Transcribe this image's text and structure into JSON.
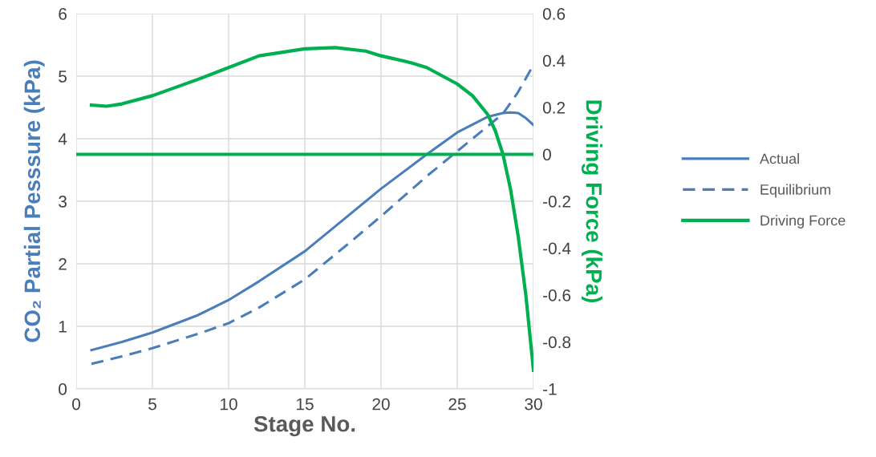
{
  "chart_data": {
    "type": "line",
    "xlabel": "Stage No.",
    "ylabel": "CO₂ Partial Pesssure (kPa)",
    "y2label": "Driving Force (kPa)",
    "xlim": [
      0,
      30
    ],
    "xticks": [
      0,
      5,
      10,
      15,
      20,
      25,
      30
    ],
    "ylim": [
      0,
      6
    ],
    "yticks": [
      0,
      1,
      2,
      3,
      4,
      5,
      6
    ],
    "y2lim": [
      -1,
      0.6
    ],
    "y2ticks": [
      -1,
      -0.8,
      -0.6,
      -0.4,
      -0.2,
      0,
      0.2,
      0.4,
      0.6
    ],
    "grid": true,
    "legend": "right",
    "marker": "none",
    "ref_lines": [
      {
        "axis": "y2",
        "value": 0,
        "color": "#00b050"
      }
    ],
    "series": [
      {
        "name": "Actual",
        "color": "#4a7ebb",
        "line_style": "solid",
        "x": [
          1,
          3,
          5,
          8,
          10,
          12,
          15,
          18,
          20,
          23,
          25,
          27,
          28,
          28.5,
          29,
          29.5,
          30
        ],
        "values": [
          0.62,
          0.75,
          0.9,
          1.18,
          1.42,
          1.72,
          2.2,
          2.8,
          3.2,
          3.75,
          4.1,
          4.35,
          4.41,
          4.42,
          4.41,
          4.33,
          4.22
        ]
      },
      {
        "name": "Equilibrium",
        "color": "#4a7ebb",
        "line_style": "dashed",
        "x": [
          1,
          3,
          5,
          8,
          10,
          12,
          15,
          18,
          20,
          23,
          25,
          27,
          28,
          29,
          30
        ],
        "values": [
          0.4,
          0.52,
          0.65,
          0.88,
          1.05,
          1.3,
          1.75,
          2.35,
          2.76,
          3.4,
          3.8,
          4.2,
          4.4,
          4.75,
          5.18
        ]
      },
      {
        "name": "Driving Force",
        "color": "#00b050",
        "line_style": "solid",
        "axis": "y2",
        "x": [
          1,
          2,
          3,
          5,
          8,
          10,
          12,
          15,
          17,
          19,
          20,
          22,
          23,
          25,
          26,
          27,
          27.5,
          28,
          28.5,
          29,
          29.5,
          30
        ],
        "values": [
          0.21,
          0.205,
          0.215,
          0.25,
          0.32,
          0.37,
          0.42,
          0.45,
          0.455,
          0.44,
          0.42,
          0.39,
          0.37,
          0.3,
          0.25,
          0.17,
          0.1,
          0.0,
          -0.15,
          -0.35,
          -0.6,
          -0.92
        ]
      }
    ]
  }
}
